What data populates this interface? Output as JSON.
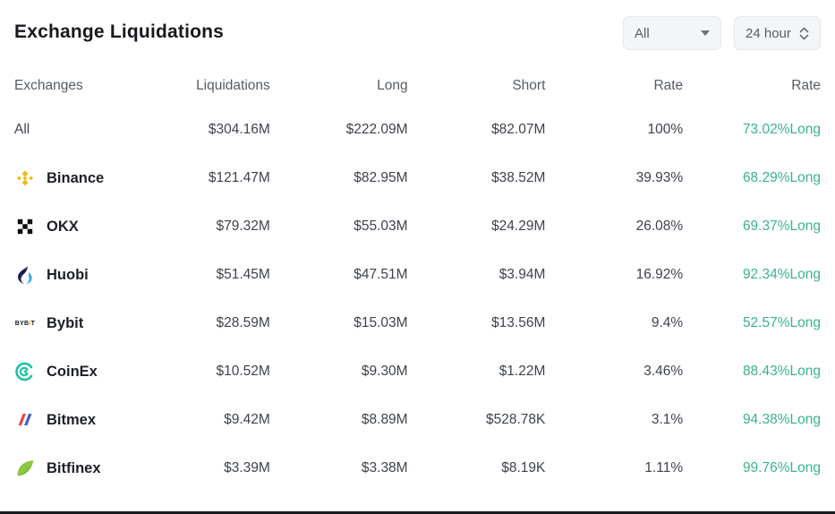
{
  "header": {
    "title": "Exchange Liquidations",
    "filter_dropdown": {
      "value": "All"
    },
    "time_dropdown": {
      "value": "24 hour"
    }
  },
  "colors": {
    "long_green": "#3ab28f",
    "binance_gold": "#F0B90B",
    "bybit_yellow": "#f7a600",
    "coinex_teal": "#20c2a6",
    "bitmex_red": "#e84a4a",
    "bitmex_blue": "#4a5fc8",
    "huobi_navy": "#1d2050",
    "huobi_blue": "#2daae1",
    "bitfinex_light_green": "#8CC640",
    "bitfinex_dark_green": "#3FA33F"
  },
  "table": {
    "columns": [
      "Exchanges",
      "Liquidations",
      "Long",
      "Short",
      "Rate",
      "Rate"
    ],
    "rows": [
      {
        "exchange": "All",
        "icon": "none",
        "liquidations": "$304.16M",
        "long": "$222.09M",
        "short": "$82.07M",
        "rate": "100%",
        "rate_long": "73.02%Long"
      },
      {
        "exchange": "Binance",
        "icon": "binance-icon",
        "liquidations": "$121.47M",
        "long": "$82.95M",
        "short": "$38.52M",
        "rate": "39.93%",
        "rate_long": "68.29%Long"
      },
      {
        "exchange": "OKX",
        "icon": "okx-icon",
        "liquidations": "$79.32M",
        "long": "$55.03M",
        "short": "$24.29M",
        "rate": "26.08%",
        "rate_long": "69.37%Long"
      },
      {
        "exchange": "Huobi",
        "icon": "huobi-icon",
        "liquidations": "$51.45M",
        "long": "$47.51M",
        "short": "$3.94M",
        "rate": "16.92%",
        "rate_long": "92.34%Long"
      },
      {
        "exchange": "Bybit",
        "icon": "bybit-icon",
        "liquidations": "$28.59M",
        "long": "$15.03M",
        "short": "$13.56M",
        "rate": "9.4%",
        "rate_long": "52.57%Long"
      },
      {
        "exchange": "CoinEx",
        "icon": "coinex-icon",
        "liquidations": "$10.52M",
        "long": "$9.30M",
        "short": "$1.22M",
        "rate": "3.46%",
        "rate_long": "88.43%Long"
      },
      {
        "exchange": "Bitmex",
        "icon": "bitmex-icon",
        "liquidations": "$9.42M",
        "long": "$8.89M",
        "short": "$528.78K",
        "rate": "3.1%",
        "rate_long": "94.38%Long"
      },
      {
        "exchange": "Bitfinex",
        "icon": "bitfinex-icon",
        "liquidations": "$3.39M",
        "long": "$3.38M",
        "short": "$8.19K",
        "rate": "1.11%",
        "rate_long": "99.76%Long"
      }
    ]
  }
}
